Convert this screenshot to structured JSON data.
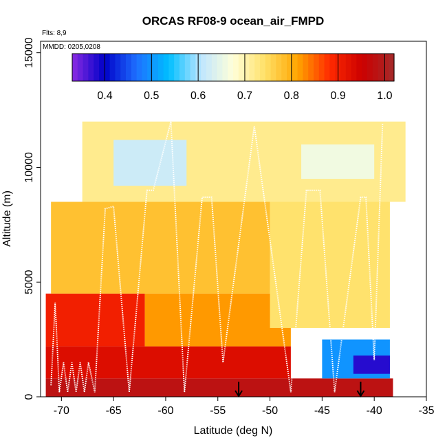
{
  "chart_data": {
    "type": "heatmap",
    "title": "ORCAS RF08-9 ocean_air_FMPD",
    "xlabel": "Latitude (deg N)",
    "ylabel": "Altitude (m)",
    "xlim": [
      -72,
      -35
    ],
    "ylim": [
      0,
      15500
    ],
    "x_ticks": [
      -70,
      -65,
      -60,
      -55,
      -50,
      -45,
      -40,
      -35
    ],
    "y_ticks": [
      0,
      5000,
      10000,
      15000
    ],
    "notes": [
      "Flts: 8,9",
      "MMDD: 0205,0208"
    ],
    "colorbar": {
      "range": [
        0.33,
        1.02
      ],
      "ticks": [
        0.4,
        0.5,
        0.6,
        0.7,
        0.8,
        0.9,
        1.0
      ],
      "tick_labels": [
        "0.4",
        "0.5",
        "0.6",
        "0.7",
        "0.8",
        "0.9",
        "1.0"
      ],
      "colors": [
        "#8a2be2",
        "#0000c8",
        "#1e6fff",
        "#00bfff",
        "#bfe6ff",
        "#ffffd9",
        "#ffe066",
        "#ffa500",
        "#ff2a00",
        "#cc0000",
        "#a52a2a"
      ]
    },
    "arrows_x": [
      -53,
      -41.3
    ],
    "field": [
      {
        "x0": -71.5,
        "x1": -38.2,
        "y0": 0,
        "y1": 800,
        "value": 0.98
      },
      {
        "x0": -71.5,
        "x1": -48,
        "y0": 800,
        "y1": 2200,
        "value": 0.93
      },
      {
        "x0": -71.5,
        "x1": -62,
        "y0": 2200,
        "y1": 4500,
        "value": 0.9
      },
      {
        "x0": -62,
        "x1": -48,
        "y0": 2200,
        "y1": 4500,
        "value": 0.82
      },
      {
        "x0": -71,
        "x1": -50,
        "y0": 4500,
        "y1": 8500,
        "value": 0.78
      },
      {
        "x0": -50,
        "x1": -38.5,
        "y0": 3000,
        "y1": 8500,
        "value": 0.74
      },
      {
        "x0": -68,
        "x1": -37,
        "y0": 8500,
        "y1": 12000,
        "value": 0.72
      },
      {
        "x0": -45,
        "x1": -38.5,
        "y0": 800,
        "y1": 2500,
        "value": 0.5
      },
      {
        "x0": -42,
        "x1": -38.5,
        "y0": 1000,
        "y1": 1800,
        "value": 0.38
      },
      {
        "x0": -65,
        "x1": -58,
        "y0": 9200,
        "y1": 11200,
        "value": 0.62
      },
      {
        "x0": -47,
        "x1": -40,
        "y0": 9500,
        "y1": 11000,
        "value": 0.66
      }
    ],
    "flight_track": [
      [
        -71,
        500
      ],
      [
        -70.6,
        4100
      ],
      [
        -70.2,
        200
      ],
      [
        -69.8,
        1500
      ],
      [
        -69.4,
        200
      ],
      [
        -69.0,
        1500
      ],
      [
        -68.6,
        200
      ],
      [
        -68.2,
        1500
      ],
      [
        -67.8,
        200
      ],
      [
        -67.4,
        1500
      ],
      [
        -66.8,
        200
      ],
      [
        -65.8,
        8200
      ],
      [
        -65.0,
        8300
      ],
      [
        -63.5,
        200
      ],
      [
        -61.8,
        9000
      ],
      [
        -61.2,
        9000
      ],
      [
        -59.5,
        12000
      ],
      [
        -58.2,
        200
      ],
      [
        -56.5,
        8700
      ],
      [
        -55.6,
        8700
      ],
      [
        -54.5,
        1500
      ],
      [
        -51.5,
        11800
      ],
      [
        -48.0,
        200
      ],
      [
        -46.5,
        9000
      ],
      [
        -45.2,
        9000
      ],
      [
        -43.8,
        200
      ],
      [
        -41.3,
        8700
      ],
      [
        -40.8,
        8700
      ],
      [
        -40.0,
        1600
      ],
      [
        -39.2,
        11900
      ]
    ]
  }
}
